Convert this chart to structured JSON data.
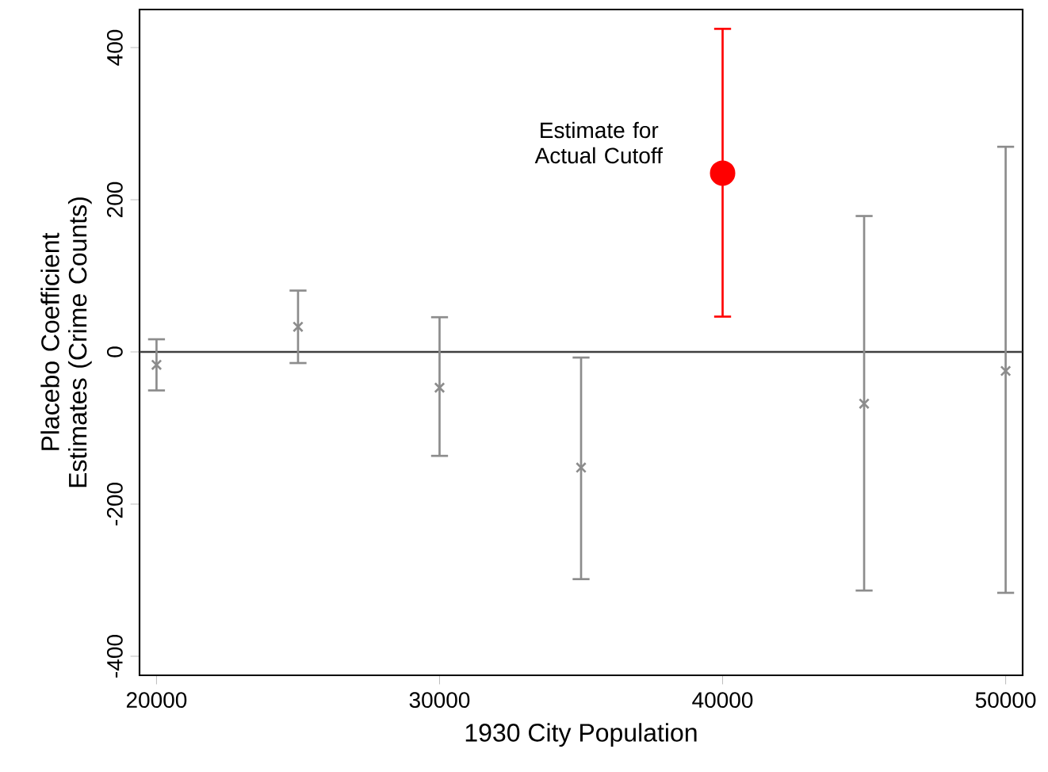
{
  "chart_data": {
    "type": "scatter",
    "xlabel": "1930 City Population",
    "ylabel": "Placebo Coefficient Estimates (Crime Counts)",
    "x": [
      20000,
      25000,
      30000,
      35000,
      40000,
      45000,
      50000
    ],
    "series": [
      {
        "color": "#8c8c8c",
        "marker": "cross",
        "values": [
          -17,
          33,
          -47,
          -152,
          null,
          -68,
          -25
        ],
        "errors": [
          [
            -52,
            18
          ],
          [
            -16,
            82
          ],
          [
            -138,
            47
          ],
          [
            -300,
            -6
          ],
          null,
          [
            -315,
            180
          ],
          [
            -318,
            271
          ]
        ]
      },
      {
        "color": "#ff0000",
        "marker": "circle",
        "values": [
          null,
          null,
          null,
          null,
          235,
          null,
          null
        ],
        "errors": [
          null,
          null,
          null,
          null,
          [
            45,
            426
          ],
          null,
          null
        ]
      }
    ],
    "annotations": [
      "Estimate for Actual Cutoff"
    ],
    "ref_lines": [
      {
        "axis": "y",
        "value": 0,
        "color": "#404040"
      }
    ],
    "xlim": [
      19400,
      50600
    ],
    "ylim": [
      -425,
      450
    ],
    "xticks": [
      20000,
      30000,
      40000,
      50000
    ],
    "yticks": [
      -400,
      -200,
      0,
      200,
      400
    ],
    "grid": false
  }
}
